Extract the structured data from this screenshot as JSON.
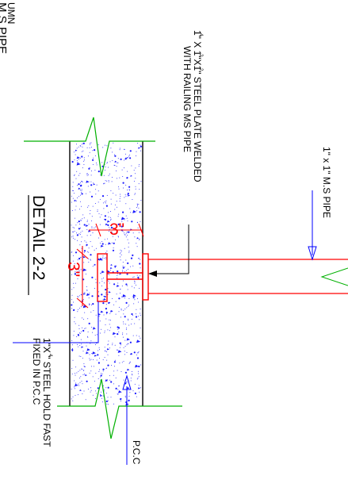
{
  "drawing": {
    "corner_note_line1": "UMN",
    "corner_note_line2": "M.S PIPE",
    "plate_note_line1": "1\" X 1\"X1\" STEEL PLATE WELDED",
    "plate_note_line2": "WITH RAILING MS PIPE",
    "plate_note_frac1": "4",
    "plate_note_frac2": "2",
    "pipe_note": "1\" x 1\" M.S PIPE",
    "title": "DETAIL 2-2",
    "dim_top": "3\"",
    "dim_side": "3\"",
    "holdfast_line1": "1\"X \" STEEL HOLD FAST",
    "holdfast_frac": "4",
    "holdfast_line2": "FIXED IN  P.C.C",
    "pcc_label": "P.C.C"
  },
  "colors": {
    "ink": "#000000",
    "dimension": "#ff0000",
    "leader": "#0000ff",
    "break_line": "#00b000",
    "pipe": "#ff0000",
    "hatch": "#1a1aff"
  }
}
